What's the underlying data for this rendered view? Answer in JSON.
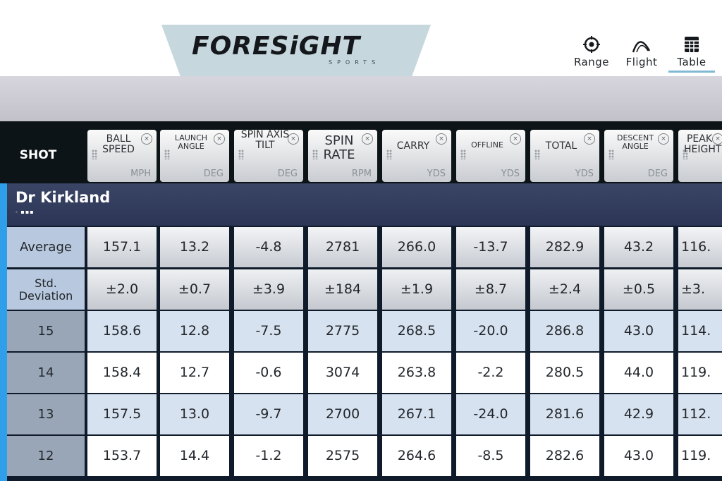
{
  "brand": {
    "name": "FORESiGHT",
    "sub": "SPORTS"
  },
  "nav": [
    {
      "label": "Range",
      "icon": "target-icon"
    },
    {
      "label": "Flight",
      "icon": "flight-arc-icon"
    },
    {
      "label": "Table",
      "icon": "table-grid-icon",
      "active": true
    }
  ],
  "table": {
    "shot_header": "SHOT",
    "columns": [
      {
        "title": "BALL SPEED",
        "unit": "MPH"
      },
      {
        "title": "LAUNCH ANGLE",
        "unit": "DEG"
      },
      {
        "title": "SPIN AXIS TILT",
        "unit": "DEG"
      },
      {
        "title": "SPIN RATE",
        "unit": "RPM"
      },
      {
        "title": "CARRY",
        "unit": "YDS"
      },
      {
        "title": "OFFLINE",
        "unit": "YDS"
      },
      {
        "title": "TOTAL",
        "unit": "YDS"
      },
      {
        "title": "DESCENT ANGLE",
        "unit": "DEG"
      },
      {
        "title": "PEAK HEIGHT",
        "unit": ""
      }
    ],
    "player": {
      "name": "Dr Kirkland",
      "sub": "- ▪▪▪"
    },
    "average": {
      "label": "Average",
      "values": [
        "157.1",
        "13.2",
        "-4.8",
        "2781",
        "266.0",
        "-13.7",
        "282.9",
        "43.2",
        "116."
      ]
    },
    "std": {
      "label": "Std. Deviation",
      "values": [
        "±2.0",
        "±0.7",
        "±3.9",
        "±184",
        "±1.9",
        "±8.7",
        "±2.4",
        "±0.5",
        "±3."
      ]
    },
    "shots": [
      {
        "shot": "15",
        "values": [
          "158.6",
          "12.8",
          "-7.5",
          "2775",
          "268.5",
          "-20.0",
          "286.8",
          "43.0",
          "114."
        ]
      },
      {
        "shot": "14",
        "values": [
          "158.4",
          "12.7",
          "-0.6",
          "3074",
          "263.8",
          "-2.2",
          "280.5",
          "44.0",
          "119."
        ]
      },
      {
        "shot": "13",
        "values": [
          "157.5",
          "13.0",
          "-9.7",
          "2700",
          "267.1",
          "-24.0",
          "281.6",
          "42.9",
          "112."
        ]
      },
      {
        "shot": "12",
        "values": [
          "153.7",
          "14.4",
          "-1.2",
          "2575",
          "264.6",
          "-8.5",
          "282.6",
          "43.0",
          "119."
        ]
      }
    ]
  },
  "colors": {
    "accent": "#2f9fea",
    "header_dark": "#0c1417",
    "player_band": "#2c3555",
    "logo_tab": "#c6d7dd"
  }
}
